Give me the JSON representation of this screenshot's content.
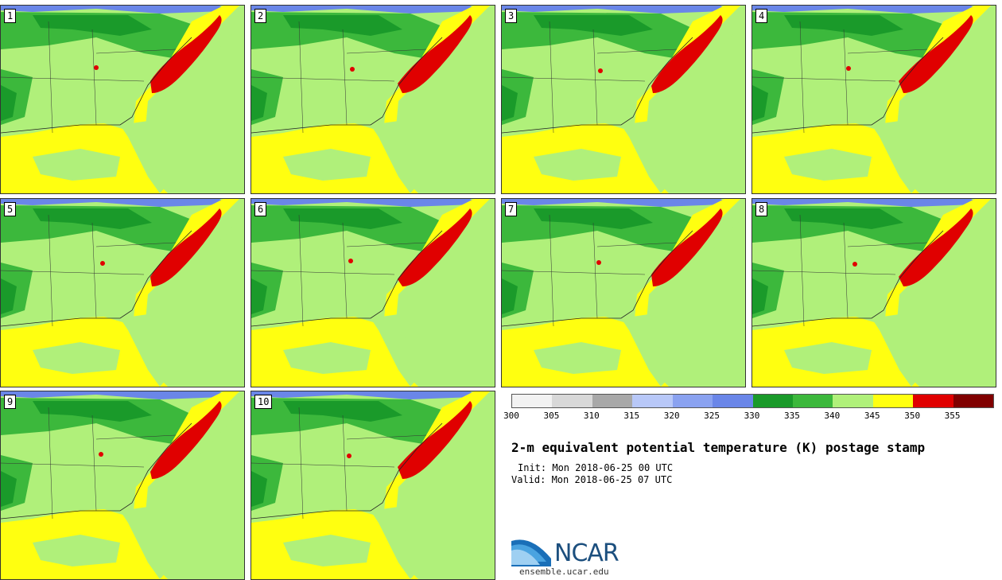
{
  "members": [
    {
      "label": "1"
    },
    {
      "label": "2"
    },
    {
      "label": "3"
    },
    {
      "label": "4"
    },
    {
      "label": "5"
    },
    {
      "label": "6"
    },
    {
      "label": "7"
    },
    {
      "label": "8"
    },
    {
      "label": "9"
    },
    {
      "label": "10"
    }
  ],
  "colorbar": {
    "ticks": [
      "300",
      "305",
      "310",
      "315",
      "320",
      "325",
      "330",
      "335",
      "340",
      "345",
      "350",
      "355"
    ],
    "colors": [
      "#f2f2f2",
      "#d8d8d8",
      "#a8a8a8",
      "#b8c8f8",
      "#8aa2f0",
      "#6a86e8",
      "#1a9a2a",
      "#3cb83c",
      "#b0f07a",
      "#ffff10",
      "#e00000",
      "#800000"
    ]
  },
  "title": "2-m equivalent potential temperature (K) postage stamp",
  "init": "Init: Mon 2018-06-25 00 UTC",
  "valid": "Valid: Mon 2018-06-25 07 UTC",
  "branding": {
    "logo_text": "NCAR",
    "url": "ensemble.ucar.edu"
  },
  "map_colors": {
    "land_moist": "#1a9a2a",
    "land_mid": "#3cb83c",
    "land_light": "#b0f07a",
    "warm": "#ffff10",
    "hot": "#e00000",
    "cool": "#6a86e8"
  }
}
